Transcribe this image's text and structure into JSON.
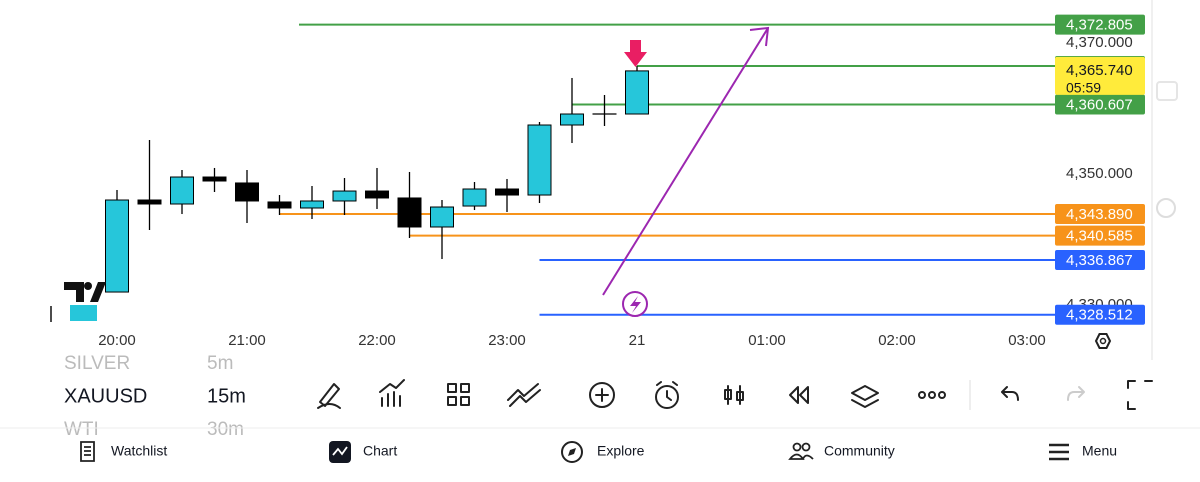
{
  "chart": {
    "price_ticks": [
      {
        "value": 4370,
        "label": "4,370.000"
      },
      {
        "value": 4350,
        "label": "4,350.000"
      },
      {
        "value": 4330,
        "label": "4,330.000"
      }
    ],
    "time_ticks": [
      "20:00",
      "21:00",
      "22:00",
      "23:00",
      "21",
      "01:00",
      "02:00",
      "03:00"
    ],
    "up_color": "#26c6da",
    "down_color": "#000000",
    "candles": [
      [
        4331.98,
        4347.56,
        4331.98,
        4346.03
      ],
      [
        4346.03,
        4355.19,
        4341.45,
        4345.42
      ],
      [
        4345.42,
        4350.61,
        4343.89,
        4349.54
      ],
      [
        4349.54,
        4350.92,
        4347.25,
        4348.93
      ],
      [
        4348.63,
        4350.61,
        4342.52,
        4345.88
      ],
      [
        4345.73,
        4346.79,
        4343.74,
        4344.81
      ],
      [
        4344.81,
        4348.17,
        4343.13,
        4345.88
      ],
      [
        4345.88,
        4349.39,
        4343.74,
        4347.4
      ],
      [
        4347.4,
        4350.92,
        4344.66,
        4346.34
      ],
      [
        4346.34,
        4350.31,
        4340.23,
        4341.91
      ],
      [
        4341.91,
        4346.03,
        4337.02,
        4344.96
      ],
      [
        4345.11,
        4348.78,
        4344.5,
        4347.71
      ],
      [
        4347.71,
        4349.24,
        4344.2,
        4346.79
      ],
      [
        4346.79,
        4357.94,
        4345.57,
        4357.48
      ],
      [
        4357.48,
        4364.66,
        4354.73,
        4359.16
      ],
      [
        4359.16,
        4362.06,
        4357.33,
        4359.16
      ],
      [
        4359.16,
        4366.49,
        4359.16,
        4365.74
      ]
    ],
    "levels": [
      {
        "price": 4372.805,
        "label": "4,372.805",
        "color": "#43a047",
        "from": 5.6
      },
      {
        "price": 4366.49,
        "color": "#43a047",
        "from": 16
      },
      {
        "price": 4360.607,
        "label": "4,360.607",
        "color": "#43a047",
        "from": 14
      },
      {
        "price": 4343.89,
        "label": "4,343.890",
        "color": "#f7931a",
        "from": 5
      },
      {
        "price": 4340.585,
        "label": "4,340.585",
        "color": "#f7931a",
        "from": 9
      },
      {
        "price": 4336.867,
        "label": "4,336.867",
        "color": "#2962ff",
        "from": 13
      },
      {
        "price": 4328.512,
        "label": "4,328.512",
        "color": "#2962ff",
        "from": 13
      }
    ],
    "current_price": {
      "value": 4365.74,
      "label": "4,365.740",
      "countdown": "05:59",
      "color": "#ffeb3b"
    }
  },
  "toolbar": {
    "symbols": [
      {
        "symbol": "SILVER",
        "interval": "5m"
      },
      {
        "symbol": "XAUUSD",
        "interval": "15m"
      },
      {
        "symbol": "WTI",
        "interval": "30m"
      }
    ]
  },
  "nav": [
    "Watchlist",
    "Chart",
    "Explore",
    "Community",
    "Menu"
  ]
}
